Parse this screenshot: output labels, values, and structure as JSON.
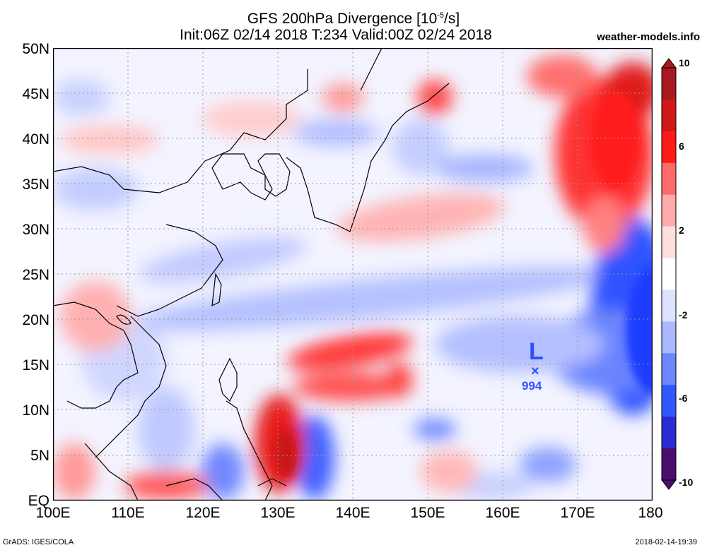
{
  "header": {
    "title": "GFS 200hPa Divergence [10",
    "title_exp": "-5",
    "title_end": "/s]",
    "subtitle": "Init:06Z 02/14 2018 T:234 Valid:00Z 02/24 2018",
    "brand": "weather-models.info"
  },
  "axes": {
    "lat_labels": [
      "50N",
      "45N",
      "40N",
      "35N",
      "30N",
      "25N",
      "20N",
      "15N",
      "10N",
      "5N",
      "EQ"
    ],
    "lon_labels": [
      "100E",
      "110E",
      "120E",
      "130E",
      "140E",
      "150E",
      "160E",
      "170E",
      "180"
    ],
    "lat_range": [
      0,
      50
    ],
    "lon_range": [
      100,
      180
    ]
  },
  "colorbar": {
    "labels": [
      "10",
      "6",
      "2",
      "-2",
      "-6",
      "-10"
    ],
    "colors": [
      "#4b0d6b",
      "#2a2bd0",
      "#2f58ff",
      "#6b86ff",
      "#aab8ff",
      "#dde3ff",
      "#ffffff",
      "#ffdede",
      "#ffaaaa",
      "#ff6a6a",
      "#ff1a1a",
      "#d01818",
      "#a81820"
    ]
  },
  "low": {
    "symbol": "L",
    "marker": "×",
    "pressure": "994"
  },
  "footer": {
    "credit": "GrADS: IGES/COLA",
    "timestamp": "2018-02-14-19:39"
  }
}
